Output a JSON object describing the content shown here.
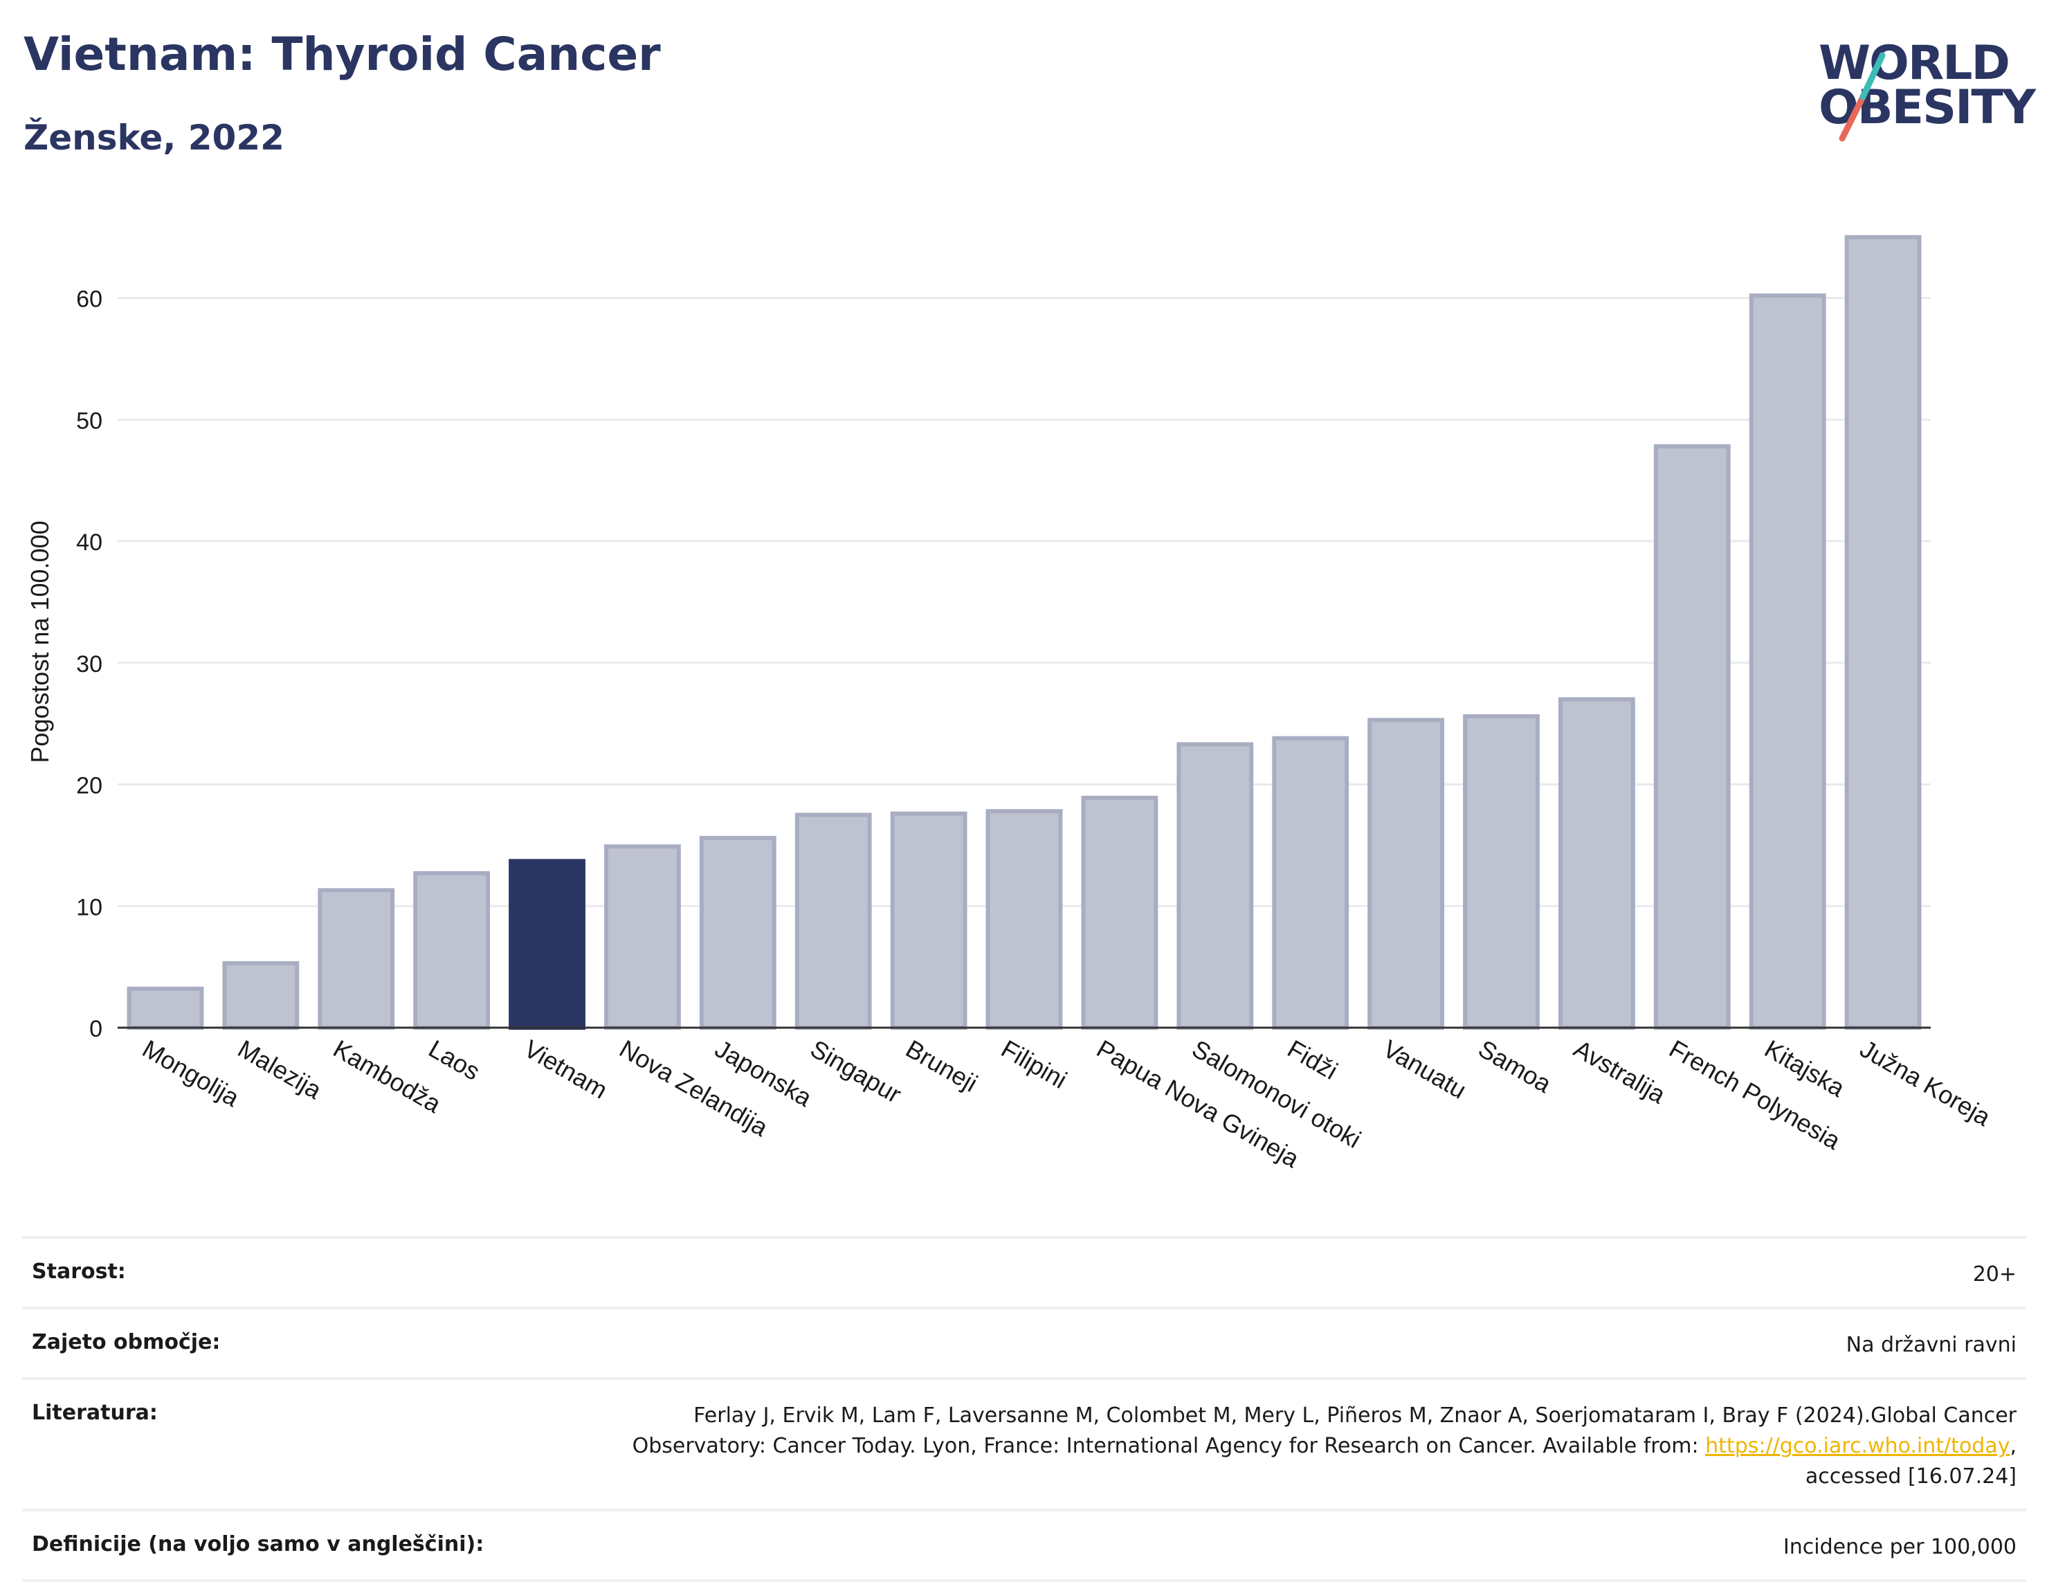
{
  "header": {
    "title": "Vietnam: Thyroid Cancer",
    "subtitle": "Ženske, 2022"
  },
  "logo": {
    "line1": "WORLD",
    "line2": "OBESITY",
    "accent_colors": [
      "#3dbcb6",
      "#e8685a"
    ]
  },
  "chart_data": {
    "type": "bar",
    "categories": [
      "Mongolija",
      "Malezija",
      "Kambodža",
      "Laos",
      "Vietnam",
      "Nova Zelandija",
      "Japonska",
      "Singapur",
      "Bruneji",
      "Filipini",
      "Papua Nova Gvineja",
      "Salomonovi otoki",
      "Fidži",
      "Vanuatu",
      "Samoa",
      "Avstralija",
      "French Polynesia",
      "Kitajska",
      "Južna Koreja"
    ],
    "values": [
      3.2,
      5.3,
      11.3,
      12.7,
      13.7,
      14.9,
      15.6,
      17.5,
      17.6,
      17.8,
      18.9,
      23.3,
      23.8,
      25.3,
      25.6,
      27.0,
      47.8,
      60.2,
      65.0
    ],
    "highlight": "Vietnam",
    "ylabel": "Pogostost na 100.000",
    "xlabel": "",
    "ylim": [
      0,
      68
    ],
    "yticks": [
      0,
      10,
      20,
      30,
      40,
      50,
      60
    ],
    "grid": true,
    "colors": {
      "bar": "#bfc2d0",
      "bar_border": "#a8adc2",
      "highlight": "#2b3562",
      "grid": "#e9eaef",
      "axis": "#333333"
    }
  },
  "meta": {
    "rows": [
      {
        "label": "Starost:",
        "value": "20+"
      },
      {
        "label": "Zajeto območje:",
        "value": "Na državni ravni"
      },
      {
        "label": "Literatura:",
        "value_line1": "Ferlay J, Ervik M, Lam F, Laversanne M, Colombet M, Mery L, Piñeros M, Znaor A, Soerjomataram I, Bray F (2024).Global Cancer",
        "value_line2_pre": "Observatory: Cancer Today. Lyon, France: International Agency for Research on Cancer. Available from: ",
        "link": "https://gco.iarc.who.int/today",
        "value_line2_post": ",",
        "value_line3": "accessed [16.07.24]"
      },
      {
        "label": "Definicije (na voljo samo v angleščini):",
        "value": "Incidence per 100,000"
      }
    ]
  }
}
